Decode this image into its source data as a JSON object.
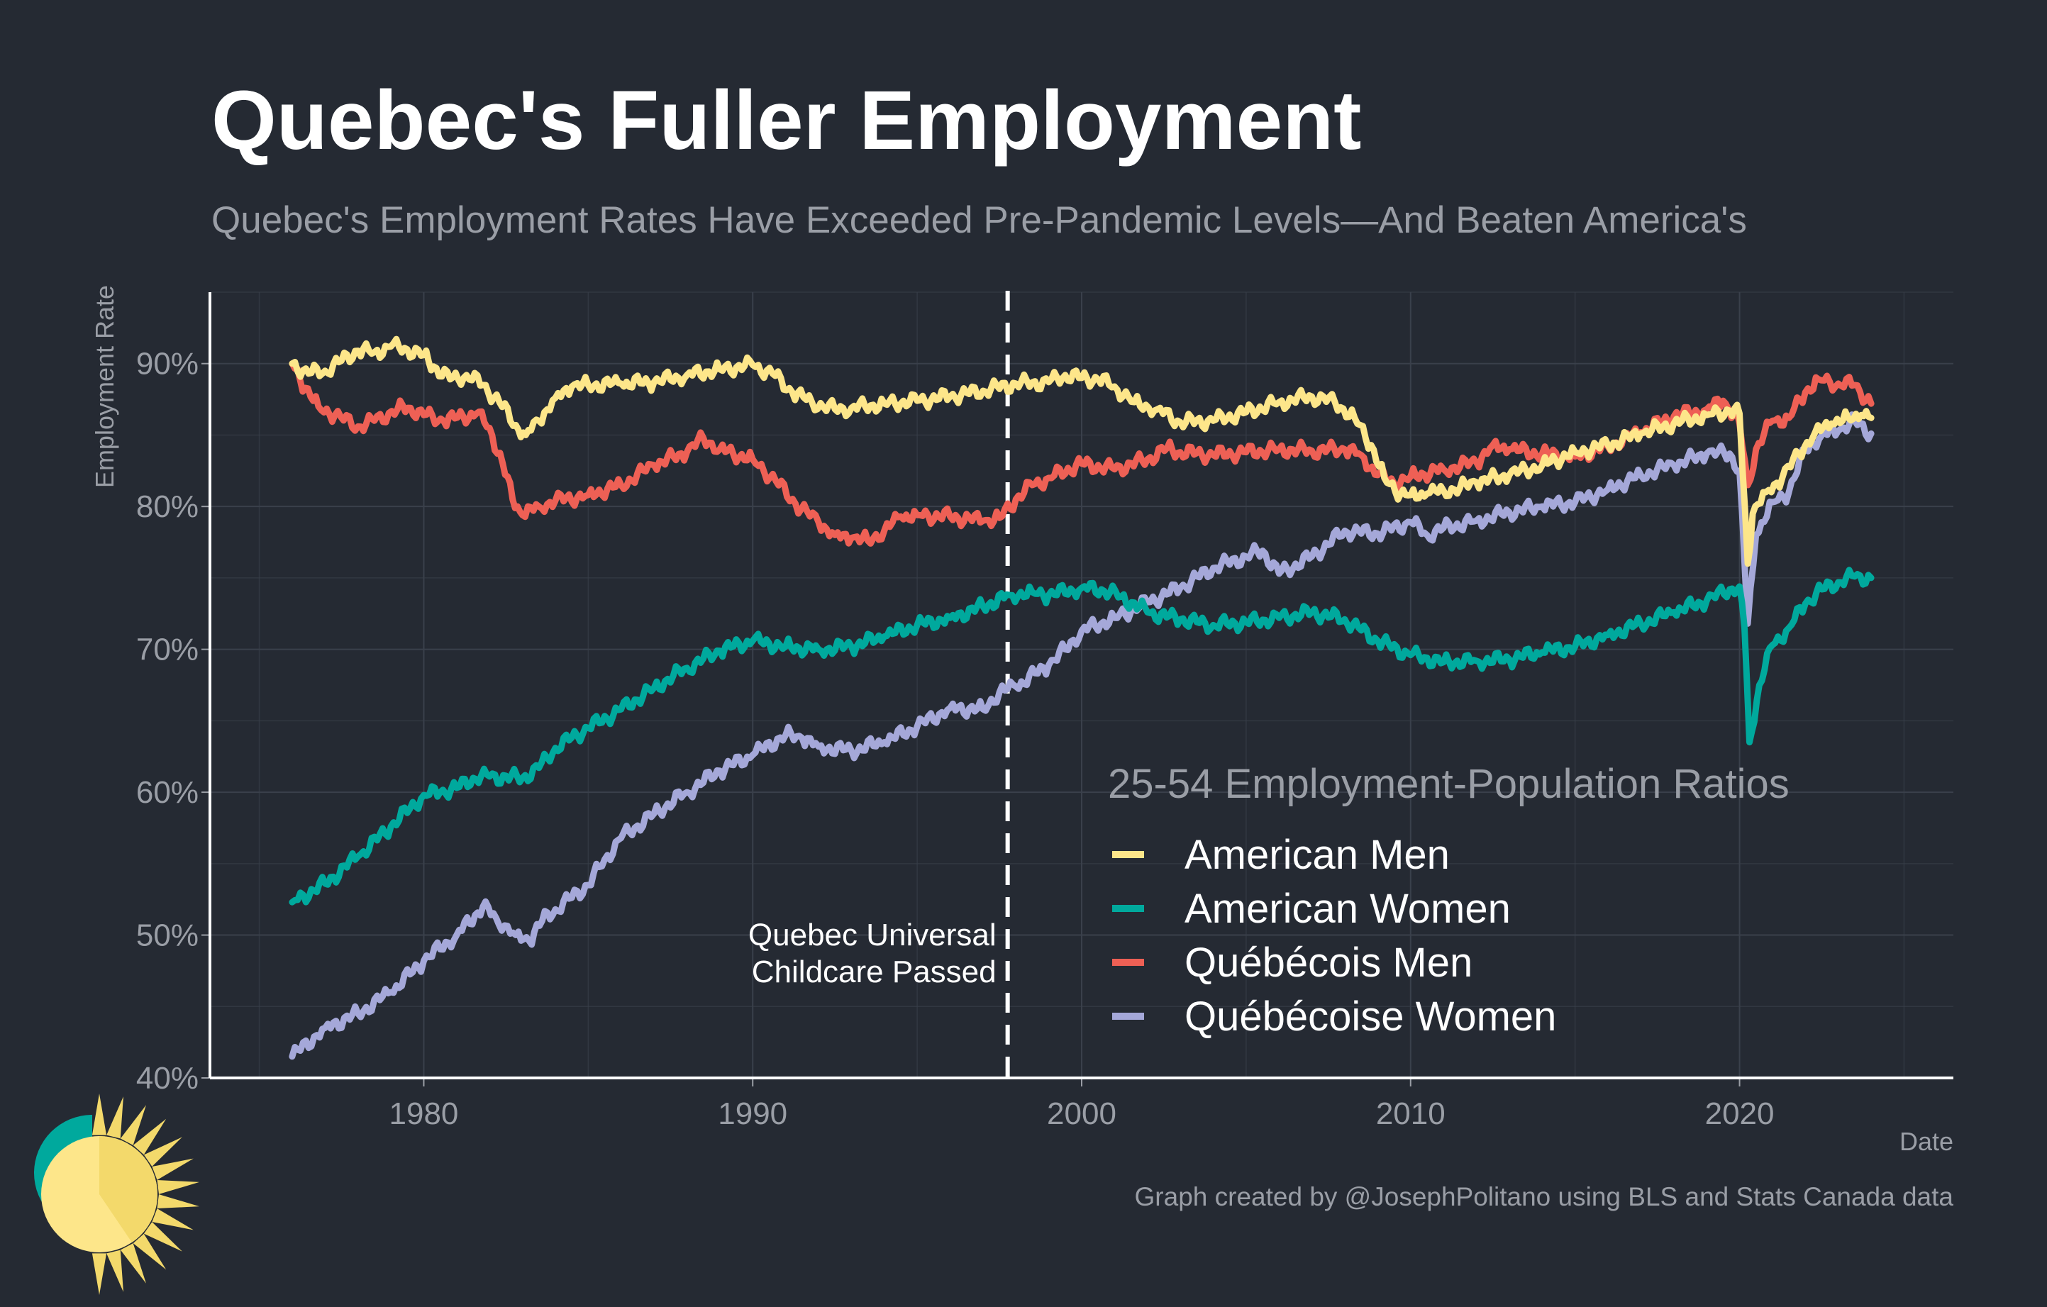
{
  "title": "Quebec's Fuller Employment",
  "subtitle": "Quebec's Employment Rates Have Exceeded Pre-Pandemic Levels—And Beaten America's",
  "colors": {
    "background": "#252a33",
    "grid": "#3a404b",
    "axis": "#ffffff",
    "title": "#ffffff",
    "muted": "#9a9ea6",
    "american_men": "#fde68a",
    "american_women": "#00a99d",
    "quebecois_men": "#ee6055",
    "quebecoise_women": "#a5a8d9"
  },
  "footer": {
    "credit": "Graph created by @JosephPolitano using BLS and Stats Canada data",
    "logo_icon": "sun-logo-icon"
  },
  "chart_data": {
    "type": "line",
    "title": "Quebec's Fuller Employment",
    "xlabel": "Date",
    "ylabel": "Employment Rate",
    "xlim": [
      1973.5,
      2026.5
    ],
    "ylim": [
      40,
      95
    ],
    "x_ticks": [
      1980,
      1990,
      2000,
      2010,
      2020
    ],
    "x_tick_labels": [
      "1980",
      "1990",
      "2000",
      "2010",
      "2020"
    ],
    "y_ticks": [
      40,
      50,
      60,
      70,
      80,
      90
    ],
    "y_tick_labels": [
      "40%",
      "50%",
      "60%",
      "70%",
      "80%",
      "90%"
    ],
    "grid": true,
    "legend": {
      "title": "25-54 Employment-Population Ratios",
      "placement": "bottom-right"
    },
    "annotation": {
      "x": 1997.75,
      "lines": [
        "Quebec Universal",
        "Childcare Passed"
      ],
      "style": "dashed-vertical"
    },
    "series": [
      {
        "name": "American Men",
        "color_key": "american_men",
        "points": [
          [
            1976.0,
            90.0
          ],
          [
            1976.5,
            89.3
          ],
          [
            1977.0,
            89.5
          ],
          [
            1977.5,
            90.2
          ],
          [
            1978.0,
            90.9
          ],
          [
            1978.5,
            90.8
          ],
          [
            1979.0,
            91.2
          ],
          [
            1979.5,
            91.0
          ],
          [
            1980.0,
            90.6
          ],
          [
            1980.3,
            89.8
          ],
          [
            1980.8,
            88.9
          ],
          [
            1981.3,
            89.2
          ],
          [
            1981.8,
            88.5
          ],
          [
            1982.3,
            87.3
          ],
          [
            1982.8,
            85.7
          ],
          [
            1983.1,
            85.0
          ],
          [
            1983.5,
            86.0
          ],
          [
            1984.0,
            87.6
          ],
          [
            1984.5,
            88.4
          ],
          [
            1985.0,
            88.5
          ],
          [
            1986.0,
            88.6
          ],
          [
            1987.0,
            88.7
          ],
          [
            1988.0,
            89.2
          ],
          [
            1989.0,
            89.6
          ],
          [
            1990.0,
            89.9
          ],
          [
            1990.6,
            89.3
          ],
          [
            1991.2,
            88.0
          ],
          [
            1991.8,
            87.3
          ],
          [
            1992.5,
            86.8
          ],
          [
            1993.0,
            86.9
          ],
          [
            1994.0,
            87.2
          ],
          [
            1995.0,
            87.4
          ],
          [
            1996.0,
            87.7
          ],
          [
            1997.0,
            88.1
          ],
          [
            1998.0,
            88.6
          ],
          [
            1999.0,
            88.7
          ],
          [
            1999.5,
            89.2
          ],
          [
            2000.0,
            89.0
          ],
          [
            2000.5,
            88.9
          ],
          [
            2001.0,
            88.4
          ],
          [
            2001.6,
            87.3
          ],
          [
            2002.3,
            86.8
          ],
          [
            2003.0,
            85.9
          ],
          [
            2004.0,
            86.0
          ],
          [
            2005.0,
            86.6
          ],
          [
            2006.0,
            87.3
          ],
          [
            2007.0,
            87.7
          ],
          [
            2007.7,
            87.3
          ],
          [
            2008.3,
            86.2
          ],
          [
            2008.8,
            84.3
          ],
          [
            2009.2,
            82.0
          ],
          [
            2009.7,
            80.9
          ],
          [
            2010.0,
            80.8
          ],
          [
            2010.5,
            80.9
          ],
          [
            2011.0,
            81.1
          ],
          [
            2011.5,
            81.3
          ],
          [
            2012.0,
            81.7
          ],
          [
            2013.0,
            82.2
          ],
          [
            2014.0,
            82.9
          ],
          [
            2015.0,
            83.8
          ],
          [
            2016.0,
            84.3
          ],
          [
            2017.0,
            85.1
          ],
          [
            2018.0,
            85.8
          ],
          [
            2019.0,
            86.4
          ],
          [
            2019.7,
            86.7
          ],
          [
            2020.0,
            86.5
          ],
          [
            2020.25,
            76.0
          ],
          [
            2020.4,
            79.5
          ],
          [
            2020.8,
            81.0
          ],
          [
            2021.3,
            82.0
          ],
          [
            2021.8,
            83.7
          ],
          [
            2022.3,
            85.2
          ],
          [
            2022.8,
            85.8
          ],
          [
            2023.3,
            86.2
          ],
          [
            2023.7,
            86.4
          ],
          [
            2024.0,
            86.2
          ]
        ]
      },
      {
        "name": "American Women",
        "color_key": "american_women",
        "points": [
          [
            1976.0,
            52.3
          ],
          [
            1977.0,
            53.6
          ],
          [
            1978.0,
            55.5
          ],
          [
            1979.0,
            57.6
          ],
          [
            1980.0,
            59.8
          ],
          [
            1980.5,
            60.0
          ],
          [
            1981.0,
            60.3
          ],
          [
            1981.5,
            61.0
          ],
          [
            1982.0,
            61.1
          ],
          [
            1983.0,
            61.0
          ],
          [
            1983.5,
            61.7
          ],
          [
            1984.0,
            63.1
          ],
          [
            1985.0,
            64.5
          ],
          [
            1986.0,
            65.8
          ],
          [
            1987.0,
            67.3
          ],
          [
            1988.0,
            68.7
          ],
          [
            1989.0,
            69.9
          ],
          [
            1990.0,
            70.6
          ],
          [
            1991.0,
            70.2
          ],
          [
            1992.0,
            70.0
          ],
          [
            1993.0,
            70.2
          ],
          [
            1994.0,
            70.9
          ],
          [
            1995.0,
            71.7
          ],
          [
            1996.0,
            72.2
          ],
          [
            1997.0,
            73.0
          ],
          [
            1997.8,
            73.8
          ],
          [
            1998.5,
            74.0
          ],
          [
            1999.0,
            73.8
          ],
          [
            2000.0,
            74.3
          ],
          [
            2000.6,
            74.2
          ],
          [
            2001.2,
            73.7
          ],
          [
            2002.0,
            72.6
          ],
          [
            2003.0,
            72.1
          ],
          [
            2004.0,
            71.7
          ],
          [
            2005.0,
            71.9
          ],
          [
            2006.0,
            72.2
          ],
          [
            2007.0,
            72.6
          ],
          [
            2008.0,
            72.1
          ],
          [
            2009.0,
            70.6
          ],
          [
            2010.0,
            69.6
          ],
          [
            2011.0,
            69.1
          ],
          [
            2012.0,
            69.2
          ],
          [
            2013.0,
            69.3
          ],
          [
            2014.0,
            69.8
          ],
          [
            2015.0,
            70.2
          ],
          [
            2016.0,
            71.0
          ],
          [
            2017.0,
            71.8
          ],
          [
            2018.0,
            72.6
          ],
          [
            2019.0,
            73.4
          ],
          [
            2019.7,
            74.2
          ],
          [
            2020.0,
            74.4
          ],
          [
            2020.15,
            71.5
          ],
          [
            2020.3,
            63.5
          ],
          [
            2020.6,
            67.5
          ],
          [
            2021.0,
            70.3
          ],
          [
            2021.5,
            71.5
          ],
          [
            2022.0,
            73.2
          ],
          [
            2022.5,
            74.2
          ],
          [
            2023.0,
            74.7
          ],
          [
            2023.5,
            75.1
          ],
          [
            2024.0,
            75.0
          ]
        ]
      },
      {
        "name": "Québécois Men",
        "color_key": "quebecois_men",
        "points": [
          [
            1976.0,
            90.0
          ],
          [
            1976.4,
            88.3
          ],
          [
            1976.8,
            87.0
          ],
          [
            1977.3,
            86.4
          ],
          [
            1978.0,
            85.6
          ],
          [
            1978.5,
            86.0
          ],
          [
            1979.2,
            86.8
          ],
          [
            1979.6,
            86.9
          ],
          [
            1980.0,
            86.4
          ],
          [
            1980.6,
            86.0
          ],
          [
            1981.2,
            86.3
          ],
          [
            1981.6,
            86.5
          ],
          [
            1982.0,
            85.5
          ],
          [
            1982.4,
            83.0
          ],
          [
            1982.7,
            80.5
          ],
          [
            1983.0,
            79.4
          ],
          [
            1983.5,
            80.0
          ],
          [
            1984.0,
            80.4
          ],
          [
            1985.0,
            80.8
          ],
          [
            1986.0,
            81.5
          ],
          [
            1987.0,
            82.9
          ],
          [
            1988.0,
            83.8
          ],
          [
            1988.5,
            84.8
          ],
          [
            1989.0,
            84.0
          ],
          [
            1990.0,
            83.3
          ],
          [
            1990.7,
            81.8
          ],
          [
            1991.3,
            80.2
          ],
          [
            1992.0,
            78.9
          ],
          [
            1992.5,
            78.0
          ],
          [
            1993.0,
            77.8
          ],
          [
            1993.5,
            77.6
          ],
          [
            1994.0,
            78.3
          ],
          [
            1994.5,
            79.3
          ],
          [
            1995.0,
            79.4
          ],
          [
            1996.0,
            79.3
          ],
          [
            1997.0,
            79.0
          ],
          [
            1997.5,
            79.2
          ],
          [
            1998.0,
            80.5
          ],
          [
            1998.5,
            81.5
          ],
          [
            1999.0,
            82.0
          ],
          [
            2000.0,
            83.0
          ],
          [
            2001.0,
            82.6
          ],
          [
            2002.0,
            83.3
          ],
          [
            2002.6,
            84.1
          ],
          [
            2003.0,
            83.8
          ],
          [
            2004.0,
            83.6
          ],
          [
            2005.0,
            83.8
          ],
          [
            2006.0,
            84.0
          ],
          [
            2007.0,
            83.9
          ],
          [
            2008.0,
            84.0
          ],
          [
            2008.5,
            83.6
          ],
          [
            2009.0,
            82.2
          ],
          [
            2009.5,
            81.6
          ],
          [
            2010.0,
            82.1
          ],
          [
            2011.0,
            82.6
          ],
          [
            2012.0,
            83.1
          ],
          [
            2012.5,
            84.3
          ],
          [
            2013.0,
            84.0
          ],
          [
            2014.0,
            83.7
          ],
          [
            2015.0,
            83.5
          ],
          [
            2016.0,
            84.2
          ],
          [
            2017.0,
            85.2
          ],
          [
            2018.0,
            86.3
          ],
          [
            2019.0,
            86.8
          ],
          [
            2019.5,
            87.4
          ],
          [
            2020.0,
            85.8
          ],
          [
            2020.25,
            81.5
          ],
          [
            2020.5,
            84.0
          ],
          [
            2021.0,
            86.0
          ],
          [
            2021.5,
            86.2
          ],
          [
            2022.0,
            88.0
          ],
          [
            2022.4,
            88.9
          ],
          [
            2023.0,
            88.6
          ],
          [
            2023.5,
            88.5
          ],
          [
            2024.0,
            87.2
          ]
        ]
      },
      {
        "name": "Québécoise Women",
        "color_key": "quebecoise_women",
        "points": [
          [
            1976.0,
            41.5
          ],
          [
            1977.0,
            43.5
          ],
          [
            1978.0,
            44.5
          ],
          [
            1979.0,
            46.0
          ],
          [
            1980.0,
            48.2
          ],
          [
            1981.0,
            50.0
          ],
          [
            1981.8,
            52.0
          ],
          [
            1982.2,
            51.2
          ],
          [
            1982.8,
            50.0
          ],
          [
            1983.2,
            49.6
          ],
          [
            1983.6,
            51.0
          ],
          [
            1984.0,
            51.8
          ],
          [
            1985.0,
            53.5
          ],
          [
            1985.5,
            55.3
          ],
          [
            1986.0,
            56.8
          ],
          [
            1987.0,
            58.5
          ],
          [
            1988.0,
            60.0
          ],
          [
            1989.0,
            61.5
          ],
          [
            1990.0,
            62.6
          ],
          [
            1991.0,
            64.0
          ],
          [
            1991.5,
            63.8
          ],
          [
            1992.0,
            63.2
          ],
          [
            1993.0,
            62.9
          ],
          [
            1994.0,
            63.5
          ],
          [
            1995.0,
            64.6
          ],
          [
            1996.0,
            65.9
          ],
          [
            1997.0,
            65.8
          ],
          [
            1997.5,
            67.0
          ],
          [
            1998.0,
            67.4
          ],
          [
            1999.0,
            68.9
          ],
          [
            1999.5,
            70.0
          ],
          [
            2000.0,
            71.3
          ],
          [
            2001.0,
            72.2
          ],
          [
            2002.0,
            73.3
          ],
          [
            2003.0,
            74.3
          ],
          [
            2004.0,
            75.7
          ],
          [
            2005.0,
            76.5
          ],
          [
            2005.5,
            76.9
          ],
          [
            2006.0,
            75.3
          ],
          [
            2007.0,
            76.5
          ],
          [
            2008.0,
            78.3
          ],
          [
            2009.0,
            78.1
          ],
          [
            2010.0,
            78.9
          ],
          [
            2010.5,
            78.0
          ],
          [
            2011.0,
            78.5
          ],
          [
            2012.0,
            79.0
          ],
          [
            2013.0,
            79.6
          ],
          [
            2014.0,
            80.0
          ],
          [
            2015.0,
            80.3
          ],
          [
            2016.0,
            81.2
          ],
          [
            2017.0,
            82.2
          ],
          [
            2018.0,
            82.9
          ],
          [
            2019.0,
            83.7
          ],
          [
            2019.7,
            83.7
          ],
          [
            2020.0,
            82.5
          ],
          [
            2020.25,
            71.8
          ],
          [
            2020.5,
            78.0
          ],
          [
            2021.0,
            80.3
          ],
          [
            2021.5,
            81.0
          ],
          [
            2022.0,
            84.0
          ],
          [
            2022.5,
            85.0
          ],
          [
            2023.0,
            85.3
          ],
          [
            2023.5,
            86.0
          ],
          [
            2024.0,
            85.1
          ]
        ]
      }
    ]
  }
}
